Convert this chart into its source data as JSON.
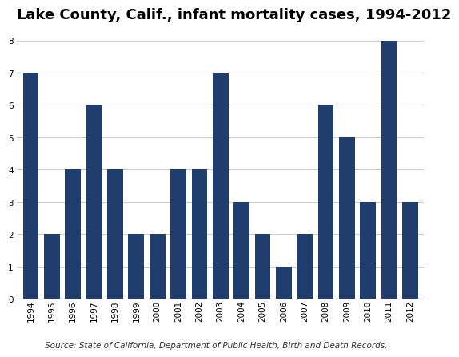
{
  "title": "Lake County, Calif., infant mortality cases, 1994-2012",
  "years": [
    1994,
    1995,
    1996,
    1997,
    1998,
    1999,
    2000,
    2001,
    2002,
    2003,
    2004,
    2005,
    2006,
    2007,
    2008,
    2009,
    2010,
    2011,
    2012
  ],
  "values": [
    7,
    2,
    4,
    6,
    4,
    2,
    2,
    4,
    4,
    7,
    3,
    2,
    1,
    2,
    6,
    5,
    3,
    8,
    3
  ],
  "bar_color": "#1F3E6E",
  "background_color": "#ffffff",
  "ylim": [
    0,
    8.4
  ],
  "yticks": [
    0,
    1,
    2,
    3,
    4,
    5,
    6,
    7,
    8
  ],
  "source_text": "Source: State of California, Department of Public Health, Birth and Death Records.",
  "title_fontsize": 13,
  "tick_fontsize": 7.5,
  "source_fontsize": 7.5,
  "grid_color": "#cccccc",
  "bar_width": 0.75
}
